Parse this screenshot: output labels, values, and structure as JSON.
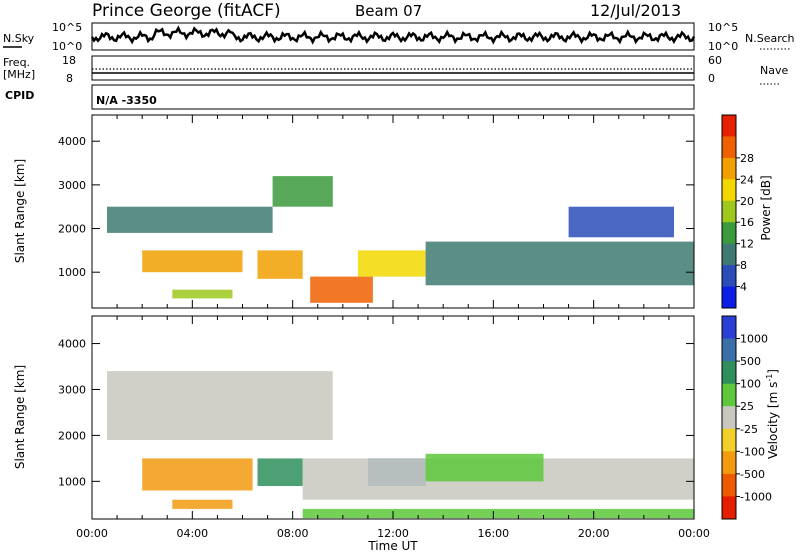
{
  "header": {
    "station": "Prince George (fitACF)",
    "beam": "Beam 07",
    "date": "12/Jul/2013"
  },
  "noise_panel": {
    "left_label": "N.Sky",
    "right_label": "N.Search",
    "left_ticks": [
      "10^5",
      "10^0"
    ],
    "right_ticks": [
      "10^5",
      "10^0"
    ]
  },
  "freq_panel": {
    "label_line1": "Freq.",
    "label_line2": "[MHz]",
    "left_ticks": [
      "18",
      "8"
    ],
    "right_ticks": [
      "60",
      "0"
    ],
    "right_label": "Nave"
  },
  "cpid_panel": {
    "label": "CPID",
    "value": "N/A -3350"
  },
  "chart_data": [
    {
      "type": "heatmap",
      "title": "Power",
      "ylabel": "Slant Range [km]",
      "xlabel": "",
      "ylim": [
        180,
        4600
      ],
      "yticks": [
        1000,
        2000,
        3000,
        4000
      ],
      "colorbar_label": "Power [dB]",
      "colorbar_ticks": [
        "4",
        "8",
        "12",
        "16",
        "20",
        "24",
        "28"
      ],
      "colorbar_colors": [
        "#0a1ee6",
        "#2a4db8",
        "#3e7a72",
        "#3a9a3c",
        "#9ec91c",
        "#f2d800",
        "#f0a000",
        "#ee6000",
        "#e62000"
      ],
      "regions": [
        {
          "x": [
            0.6,
            7.2
          ],
          "y": [
            1900,
            2500
          ],
          "value": 10
        },
        {
          "x": [
            7.2,
            9.6
          ],
          "y": [
            2500,
            3200
          ],
          "value": 14
        },
        {
          "x": [
            2.0,
            6.0
          ],
          "y": [
            1000,
            1500
          ],
          "value": 26
        },
        {
          "x": [
            6.6,
            8.4
          ],
          "y": [
            850,
            1500
          ],
          "value": 24
        },
        {
          "x": [
            8.7,
            11.2
          ],
          "y": [
            300,
            900
          ],
          "value": 28
        },
        {
          "x": [
            10.6,
            13.3
          ],
          "y": [
            900,
            1500
          ],
          "value": 20
        },
        {
          "x": [
            13.3,
            24.0
          ],
          "y": [
            700,
            1700
          ],
          "value": 8
        },
        {
          "x": [
            19.0,
            23.2
          ],
          "y": [
            1800,
            2500
          ],
          "value": 6
        },
        {
          "x": [
            3.2,
            5.6
          ],
          "y": [
            400,
            600
          ],
          "value": 16
        }
      ]
    },
    {
      "type": "heatmap",
      "title": "Velocity",
      "ylabel": "Slant Range [km]",
      "xlabel": "Time UT",
      "ylim": [
        180,
        4600
      ],
      "yticks": [
        1000,
        2000,
        3000,
        4000
      ],
      "xticks": [
        "00:00",
        "04:00",
        "08:00",
        "12:00",
        "16:00",
        "20:00",
        "00:00"
      ],
      "colorbar_label": "Velocity [m s^-1]",
      "colorbar_ticks": [
        "1000",
        "500",
        "100",
        "25",
        "-25",
        "-100",
        "-500",
        "-1000"
      ],
      "colorbar_colors": [
        "#2b3fd6",
        "#3b6fa8",
        "#2e8f5a",
        "#5cc83a",
        "#c8c8c0",
        "#f2d028",
        "#f29a10",
        "#ee5a00",
        "#e61e00"
      ],
      "regions": [
        {
          "x": [
            0.6,
            9.6
          ],
          "y": [
            1900,
            3400
          ],
          "value": 0
        },
        {
          "x": [
            2.0,
            6.4
          ],
          "y": [
            800,
            1500
          ],
          "value": -300
        },
        {
          "x": [
            6.6,
            8.4
          ],
          "y": [
            900,
            1500
          ],
          "value": 150
        },
        {
          "x": [
            11.0,
            13.3
          ],
          "y": [
            900,
            1500
          ],
          "value": 600
        },
        {
          "x": [
            8.4,
            24.0
          ],
          "y": [
            600,
            1500
          ],
          "value": 0
        },
        {
          "x": [
            13.3,
            18.0
          ],
          "y": [
            1000,
            1600
          ],
          "value": 60
        },
        {
          "x": [
            3.2,
            5.6
          ],
          "y": [
            400,
            600
          ],
          "value": -400
        },
        {
          "x": [
            8.4,
            24.0
          ],
          "y": [
            200,
            400
          ],
          "value": 60
        }
      ]
    }
  ],
  "xaxis": {
    "label": "Time UT",
    "ticks": [
      "00:00",
      "04:00",
      "08:00",
      "12:00",
      "16:00",
      "20:00",
      "00:00"
    ]
  }
}
